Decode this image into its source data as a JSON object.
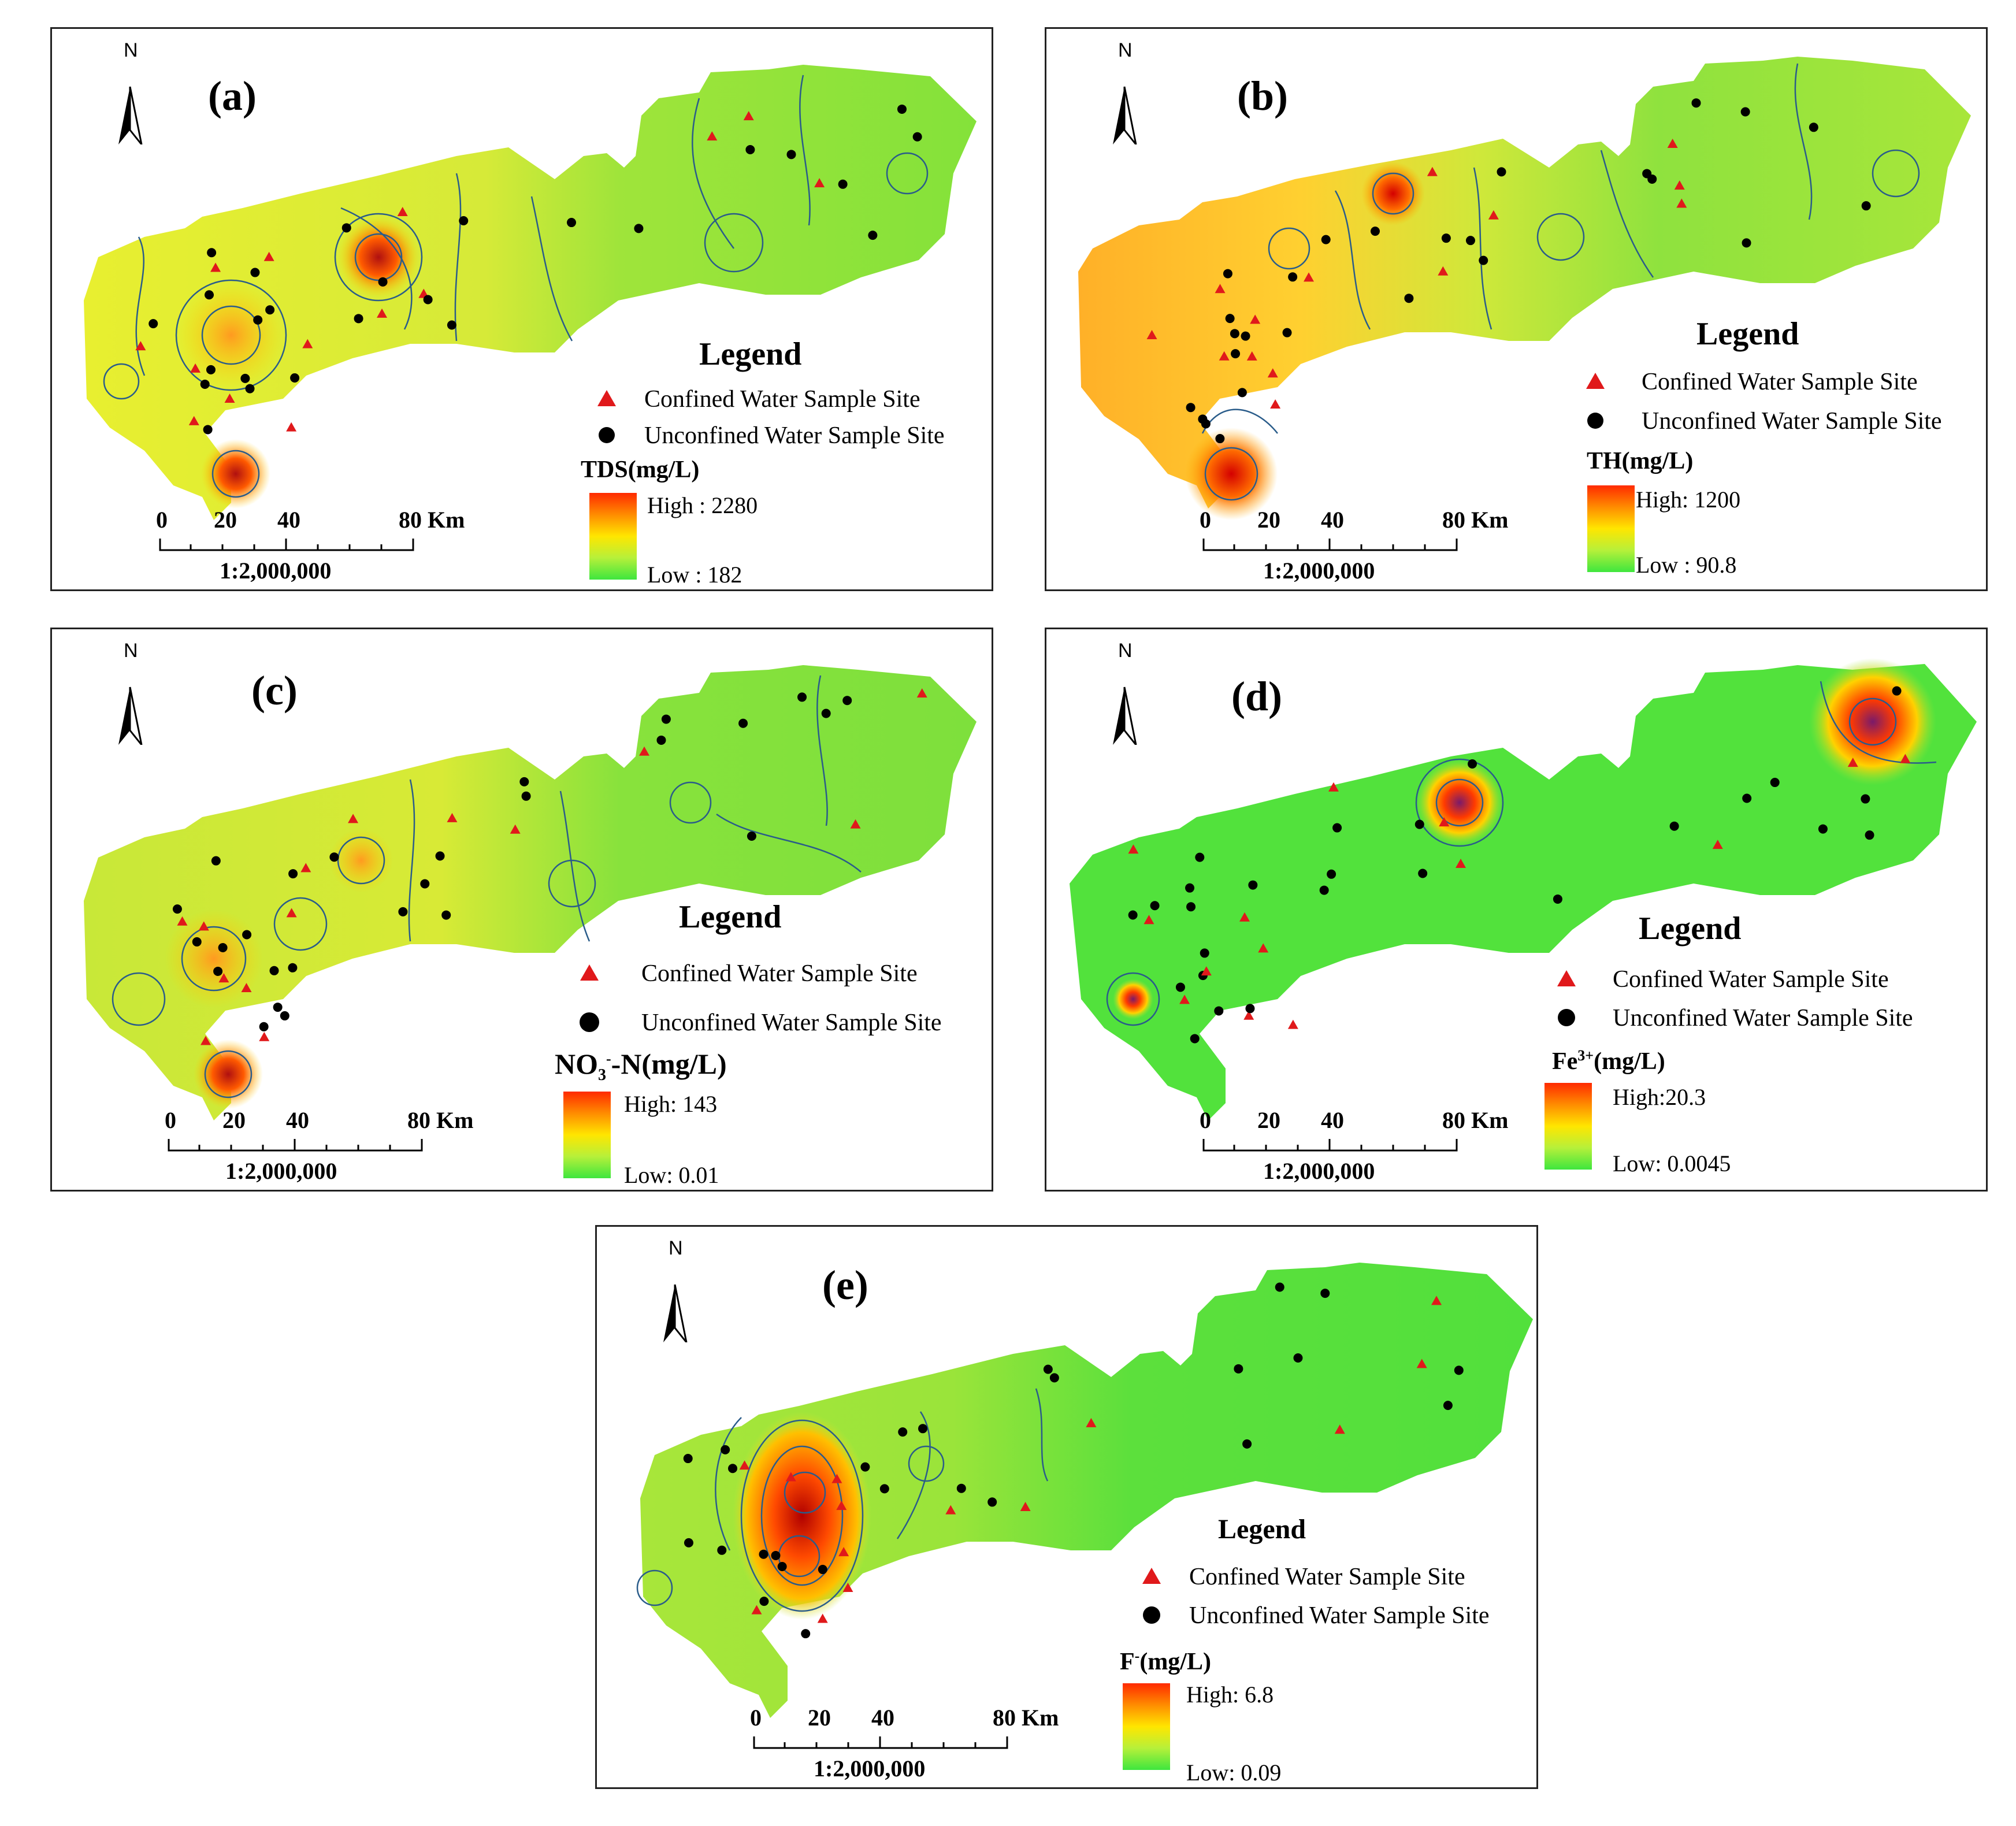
{
  "colors": {
    "high": "#ff2a00",
    "mid": "#ffe600",
    "low": "#3ee63e",
    "confined_marker": "#e0191b",
    "unconfined_marker": "#000000",
    "contour": "#2a5c8a"
  },
  "icons": {
    "north_arrow": "north-arrow-icon",
    "confined": "red-triangle-icon",
    "unconfined": "black-dot-icon"
  },
  "common": {
    "north": "N",
    "legend_title": "Legend",
    "confined_label": "Confined Water Sample Site",
    "unconfined_label": "Unconfined Water Sample Site",
    "scale_ticks": [
      "0",
      "20",
      "40",
      "80 Km"
    ],
    "scale_ratio": "1:2,000,000"
  },
  "panels": {
    "a": {
      "label": "(a)",
      "var_main": "TDS(mg/L)",
      "high": "High : 2280",
      "low": "Low : 182"
    },
    "b": {
      "label": "(b)",
      "var_main": "TH(mg/L)",
      "high": "High: 1200",
      "low": "Low : 90.8"
    },
    "c": {
      "label": "(c)",
      "var_main": "NO",
      "var_sub": "3",
      "var_sup": "-",
      "var_rest": "-N(mg/L)",
      "high": "High: 143",
      "low": "Low: 0.01"
    },
    "d": {
      "label": "(d)",
      "var_main": "Fe",
      "var_sup": "3+",
      "var_rest": "(mg/L)",
      "high": "High:20.3",
      "low": "Low: 0.0045"
    },
    "e": {
      "label": "(e)",
      "var_main": "F",
      "var_sup": "-",
      "var_rest": "(mg/L)",
      "high": "High: 6.8",
      "low": "Low: 0.09"
    }
  }
}
